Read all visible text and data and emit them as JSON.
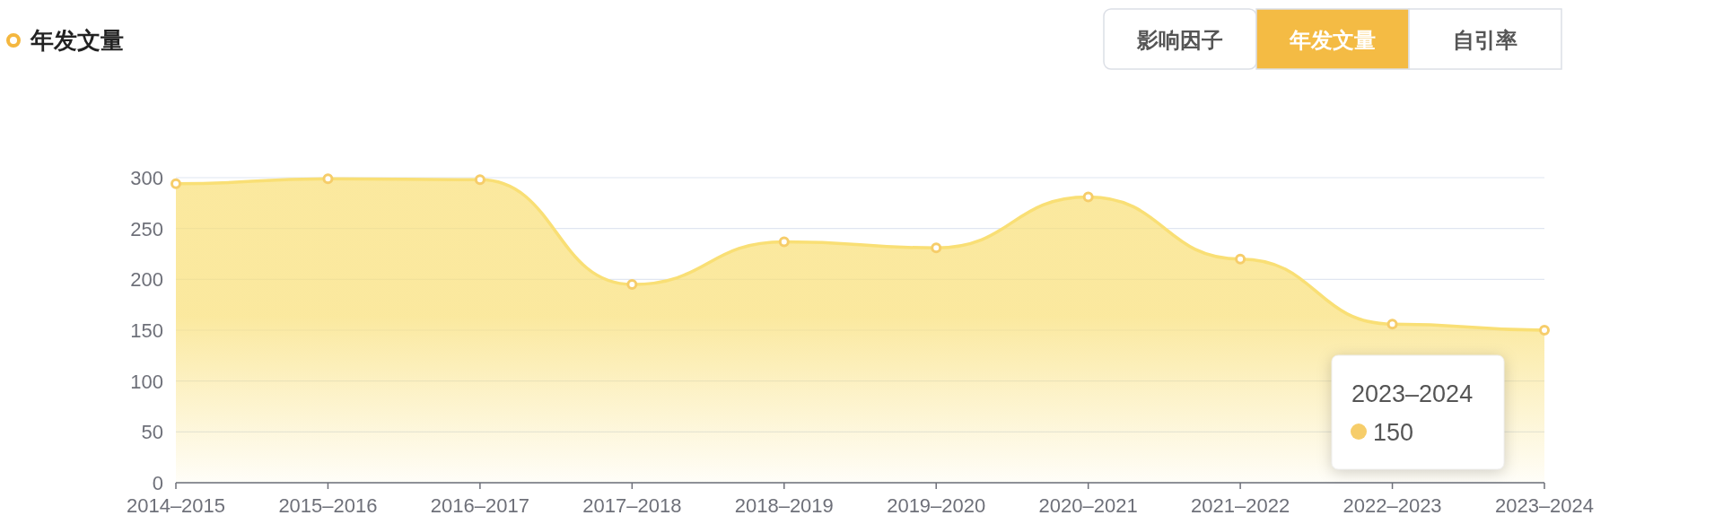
{
  "chart_data": {
    "type": "area",
    "title": "年发文量",
    "categories": [
      "2014–2015",
      "2015–2016",
      "2016–2017",
      "2017–2018",
      "2018–2019",
      "2019–2020",
      "2020–2021",
      "2021–2022",
      "2022–2023",
      "2023–2024"
    ],
    "series": [
      {
        "color": "#f9df75",
        "values": [
          294,
          299,
          298,
          195,
          237,
          231,
          281,
          220,
          156,
          150
        ]
      }
    ],
    "ylim": [
      0,
      300
    ],
    "yticks": [
      0,
      50,
      100,
      150,
      200,
      250,
      300
    ],
    "grid": "y",
    "marker": "circle",
    "line_style": "solid",
    "annotations": [
      "影响因子",
      "年发文量",
      "自引率",
      "2023–2024",
      "150"
    ]
  }
}
